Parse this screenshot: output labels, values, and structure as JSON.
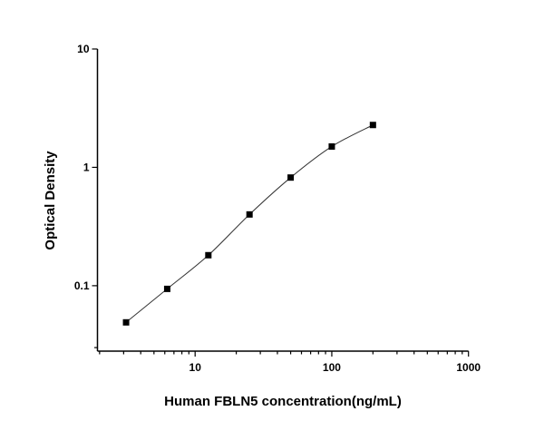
{
  "chart_data": {
    "type": "scatter",
    "title": "",
    "xlabel": "Human FBLN5 concentration(ng/mL)",
    "ylabel": "Optical Density",
    "x_scale": "log",
    "y_scale": "log",
    "xlim": [
      1.93,
      1000
    ],
    "ylim": [
      0.028,
      10
    ],
    "x_ticks": [
      10,
      100,
      1000
    ],
    "x_tick_labels": [
      "10",
      "100",
      "1000"
    ],
    "y_ticks": [
      0.1,
      1,
      10
    ],
    "y_tick_labels": [
      "0.1",
      "1",
      "10"
    ],
    "grid": false,
    "legend": "none",
    "fit_curve": true,
    "marker": "square",
    "color": "#000000",
    "series": [
      {
        "x": [
          3.125,
          6.25,
          12.5,
          25,
          50,
          100,
          200
        ],
        "y": [
          0.049,
          0.094,
          0.181,
          0.4,
          0.82,
          1.5,
          2.28
        ]
      }
    ]
  }
}
